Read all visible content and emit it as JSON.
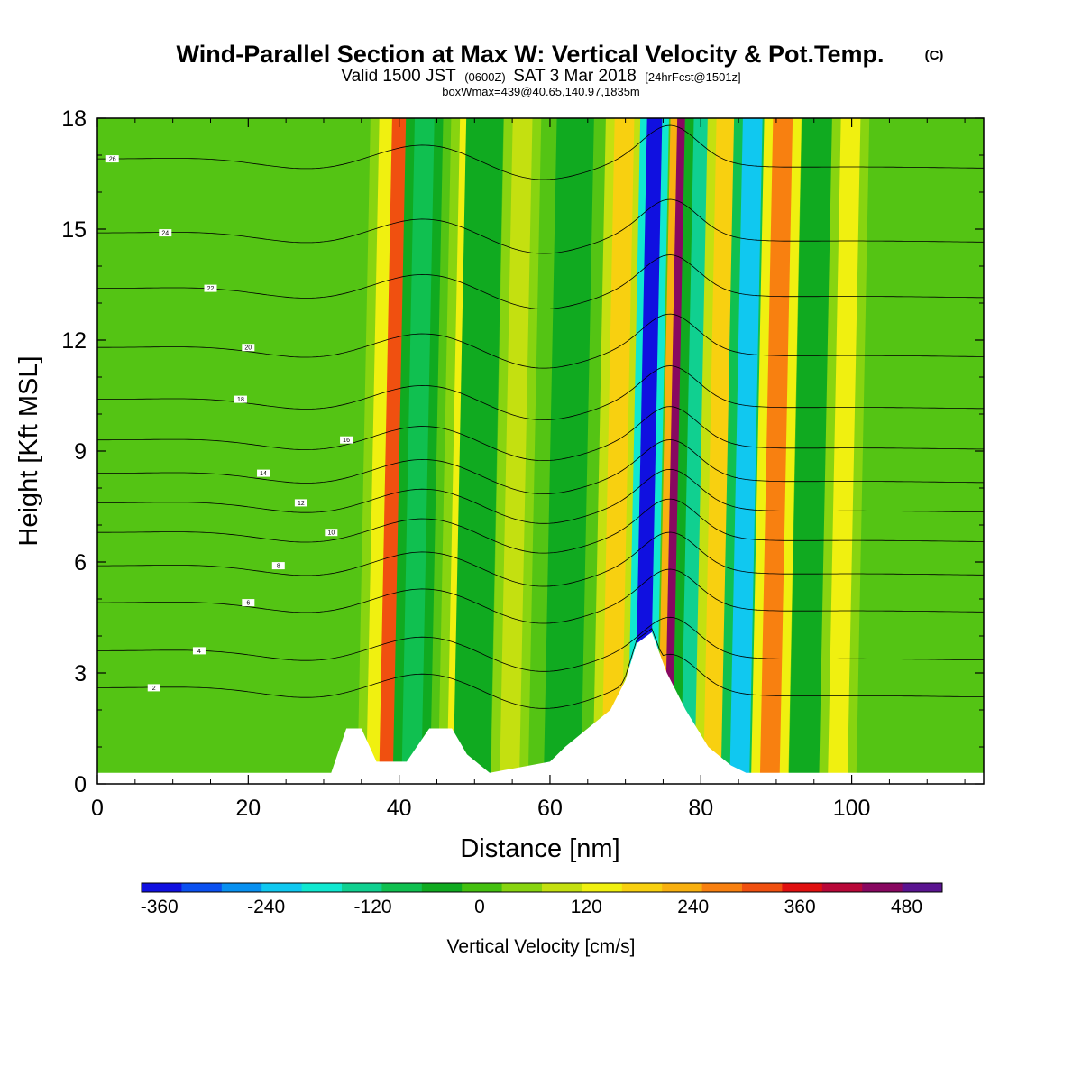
{
  "header": {
    "title": "Wind-Parallel Section at Max W: Vertical Velocity & Pot.Temp.",
    "copyright": "(C)",
    "valid_prefix": "Valid 1500 JST",
    "zulu": "(0600Z)",
    "valid_suffix": "SAT 3 Mar 2018",
    "forecast": "[24hrFcst@1501z]",
    "box_info": "boxWmax=439@40.65,140.97,1835m"
  },
  "chart_data": {
    "type": "heatmap",
    "title": "Wind-Parallel Section at Max W: Vertical Velocity & Pot.Temp.",
    "xlabel": "Distance [nm]",
    "ylabel": "Height [Kft MSL]",
    "xlim": [
      0,
      117.5
    ],
    "ylim": [
      0,
      18
    ],
    "xticks": [
      0,
      20,
      40,
      60,
      80,
      100
    ],
    "yticks": [
      0,
      3,
      6,
      9,
      12,
      15,
      18
    ],
    "colorbar": {
      "title": "Vertical Velocity [cm/s]",
      "tick_labels": [
        "-360",
        "-240",
        "-120",
        "0",
        "120",
        "240",
        "360",
        "480"
      ],
      "tick_values": [
        -360,
        -240,
        -120,
        0,
        120,
        240,
        360,
        480
      ],
      "range": [
        -380,
        520
      ],
      "colors": [
        "#1010e0",
        "#0a50f0",
        "#0890f0",
        "#10c8f0",
        "#10e8d0",
        "#10d090",
        "#10c050",
        "#10aa20",
        "#44c010",
        "#88d410",
        "#c4e010",
        "#f0f010",
        "#f8d010",
        "#f8b010",
        "#f88010",
        "#f05010",
        "#e01010",
        "#b80838",
        "#880860",
        "#5a1490"
      ]
    },
    "velocity_bands": [
      {
        "x": 37.8,
        "w": 120
      },
      {
        "x": 39.5,
        "w": 300
      },
      {
        "x": 42.5,
        "w": -70
      },
      {
        "x": 48.5,
        "w": 130
      },
      {
        "x": 50.5,
        "w": -60
      },
      {
        "x": 55.5,
        "w": 100
      },
      {
        "x": 62.5,
        "w": -50
      },
      {
        "x": 69.0,
        "w": 160
      },
      {
        "x": 73.0,
        "w": -380
      },
      {
        "x": 77.0,
        "w": 439
      },
      {
        "x": 79.5,
        "w": -130
      },
      {
        "x": 82.5,
        "w": 200
      },
      {
        "x": 86.0,
        "w": -220
      },
      {
        "x": 90.0,
        "w": 260
      },
      {
        "x": 95.0,
        "w": -60
      },
      {
        "x": 99.0,
        "w": 120
      }
    ],
    "terrain": [
      [
        0,
        0.3
      ],
      [
        31,
        0.3
      ],
      [
        33,
        1.5
      ],
      [
        35,
        1.5
      ],
      [
        37,
        0.6
      ],
      [
        41,
        0.6
      ],
      [
        44,
        1.5
      ],
      [
        47,
        1.5
      ],
      [
        49,
        0.8
      ],
      [
        52,
        0.3
      ],
      [
        60,
        0.6
      ],
      [
        62,
        1.0
      ],
      [
        65,
        1.5
      ],
      [
        68,
        2.0
      ],
      [
        70,
        2.8
      ],
      [
        71.5,
        3.8
      ],
      [
        73.5,
        4.1
      ],
      [
        75.5,
        3.0
      ],
      [
        78,
        2.0
      ],
      [
        81,
        1.0
      ],
      [
        84,
        0.5
      ],
      [
        86,
        0.3
      ],
      [
        117.5,
        0.3
      ]
    ],
    "theta_series": [
      {
        "label": "2",
        "level": 2.6,
        "label_x": 7.5
      },
      {
        "label": "4",
        "level": 3.6,
        "label_x": 13.5
      },
      {
        "label": "6",
        "level": 4.9,
        "label_x": 20.0
      },
      {
        "label": "8",
        "level": 5.9,
        "label_x": 24.0
      },
      {
        "label": "10",
        "level": 6.8,
        "label_x": 31.0
      },
      {
        "label": "12",
        "level": 7.6,
        "label_x": 27.0
      },
      {
        "label": "14",
        "level": 8.4,
        "label_x": 22.0
      },
      {
        "label": "16",
        "level": 9.3,
        "label_x": 33.0
      },
      {
        "label": "18",
        "level": 10.4,
        "label_x": 19.0
      },
      {
        "label": "20",
        "level": 11.8,
        "label_x": 20.0
      },
      {
        "label": "22",
        "level": 13.4,
        "label_x": 15.0
      },
      {
        "label": "24",
        "level": 14.9,
        "label_x": 9.0
      },
      {
        "label": "26",
        "level": 16.9,
        "label_x": 2.0
      }
    ]
  }
}
